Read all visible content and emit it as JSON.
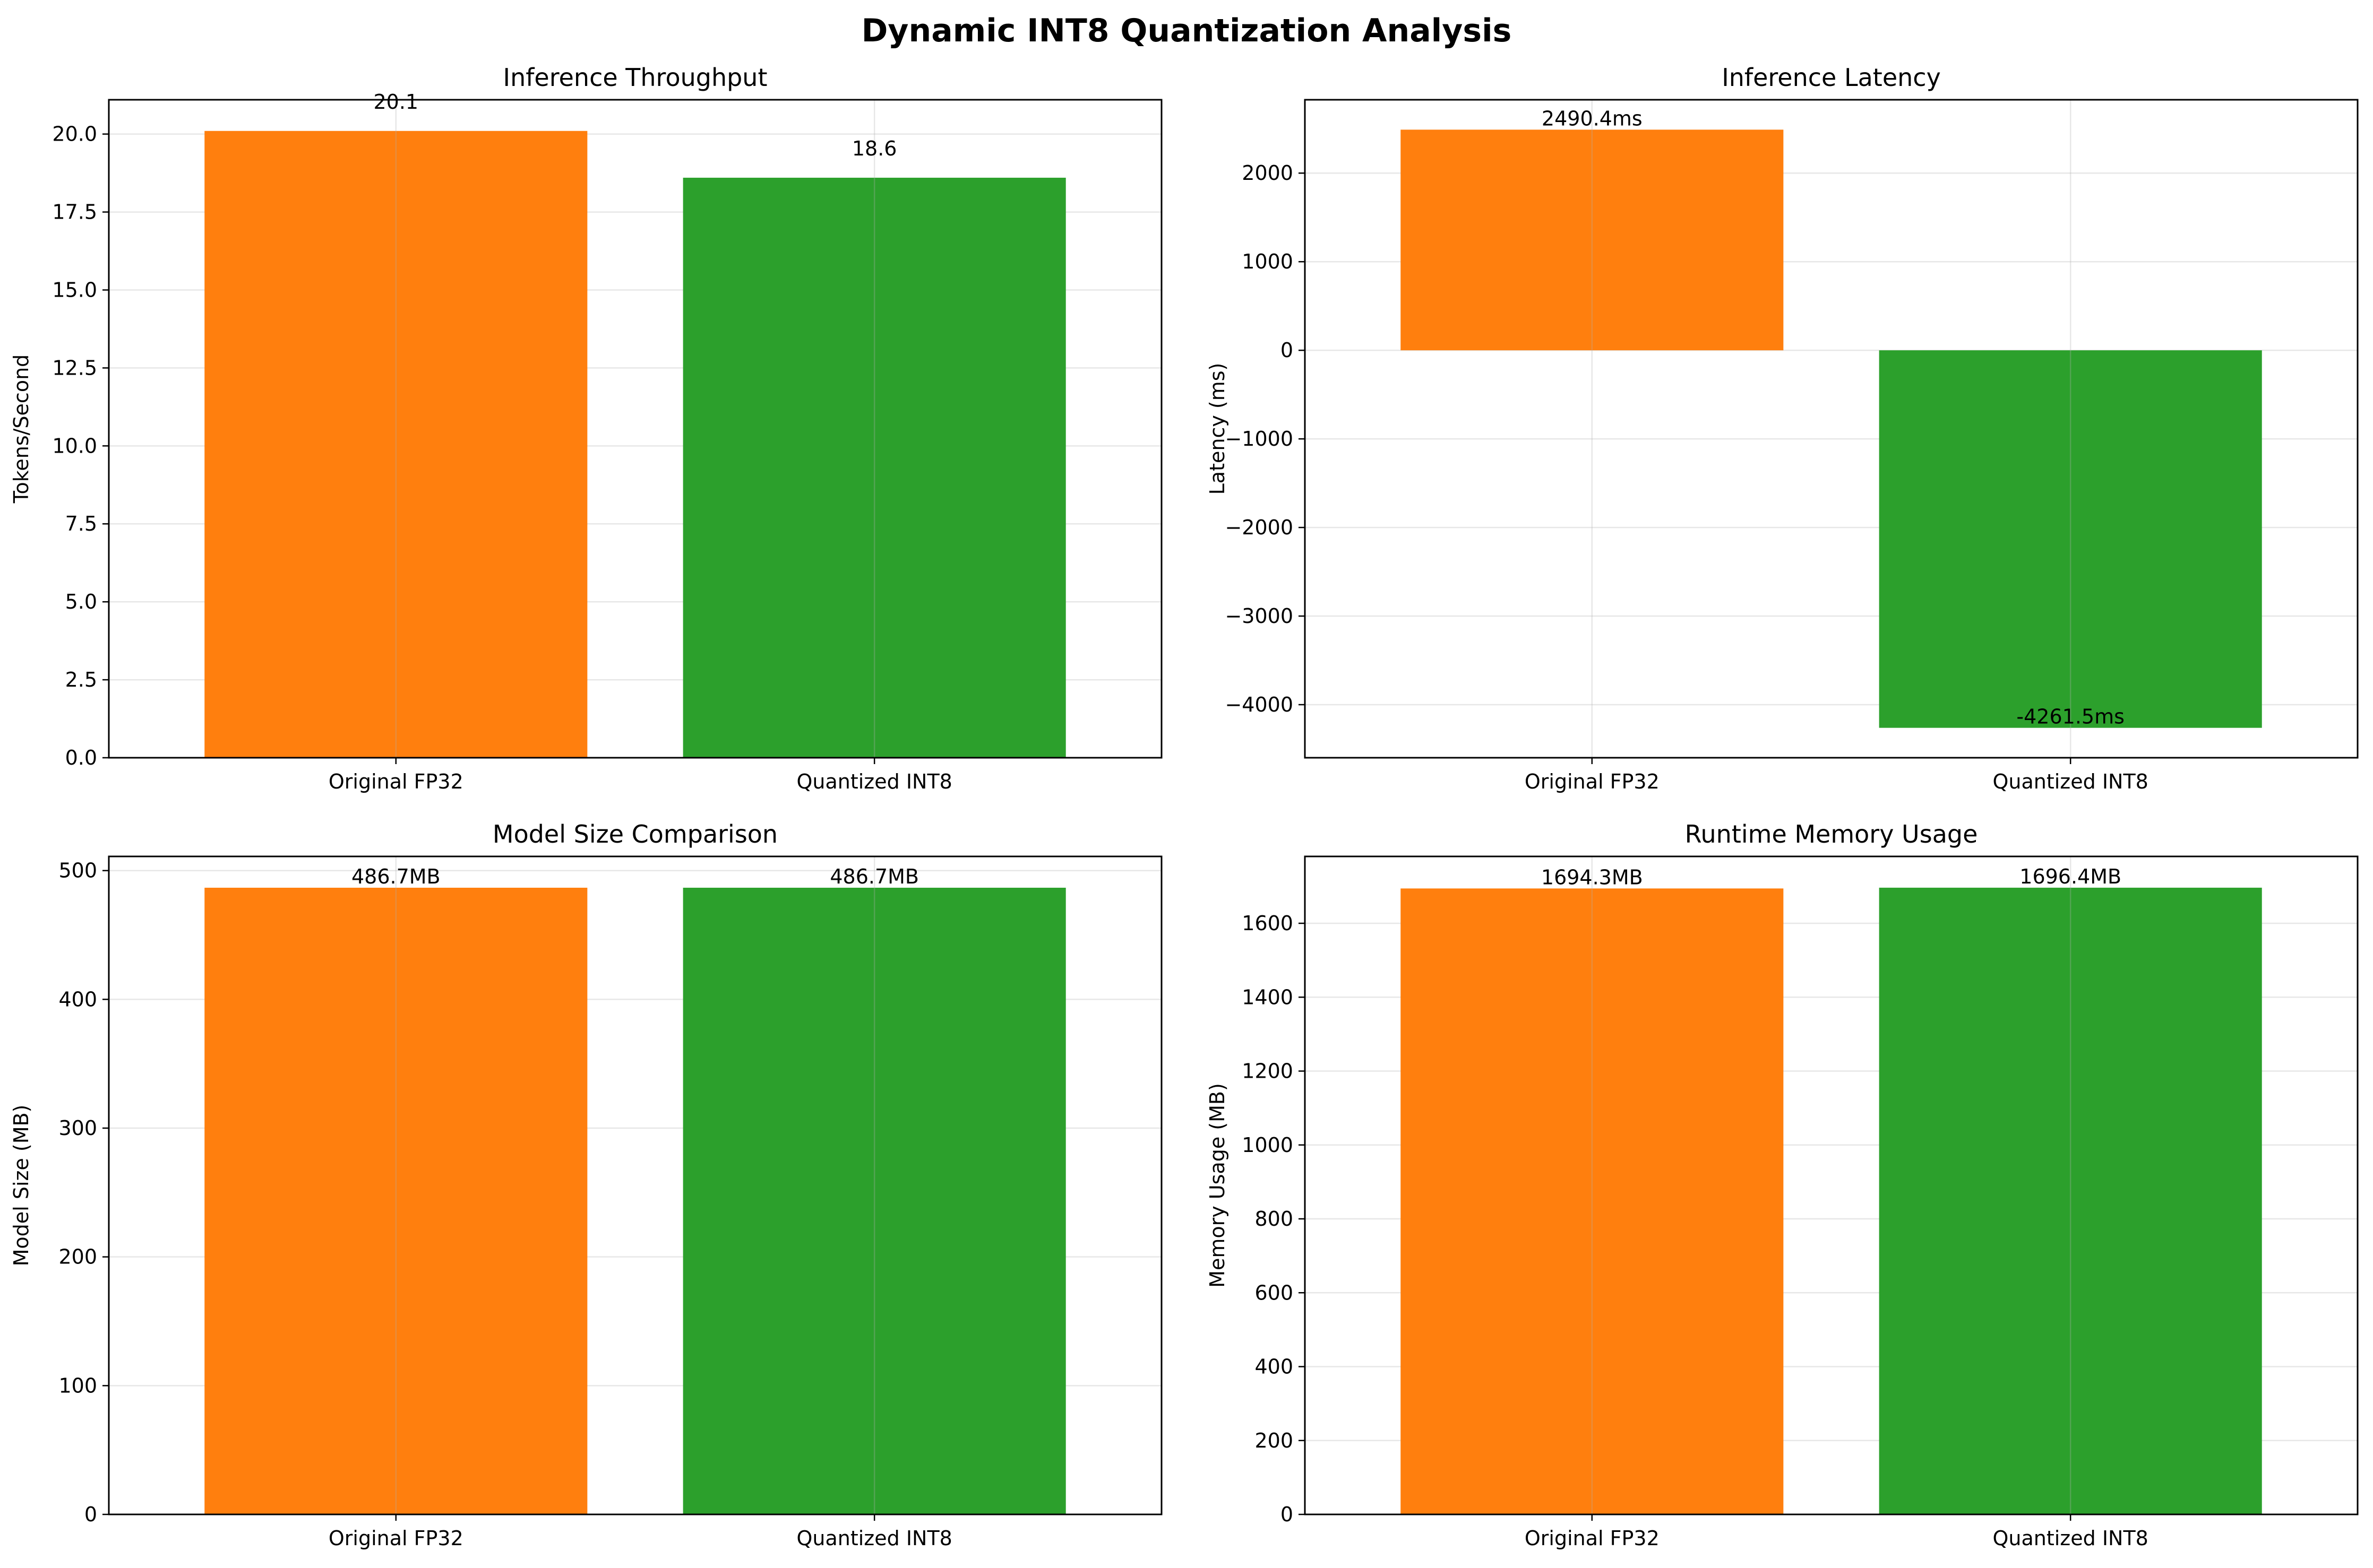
{
  "figure": {
    "title": "Dynamic INT8 Quantization Analysis"
  },
  "chart_data": [
    {
      "type": "bar",
      "title": "Inference Throughput",
      "xlabel": "",
      "ylabel": "Tokens/Second",
      "categories": [
        "Original FP32",
        "Quantized INT8"
      ],
      "values": [
        20.1,
        18.6
      ],
      "value_labels": [
        "20.1",
        "18.6"
      ],
      "label_position": "above",
      "colors": [
        "#ff7f0e",
        "#2ca02c"
      ],
      "ylim": [
        0,
        21.1
      ],
      "yticks": [
        0,
        2.5,
        5,
        7.5,
        10,
        12.5,
        15,
        17.5,
        20
      ],
      "ytick_labels": [
        "0.0",
        "2.5",
        "5.0",
        "7.5",
        "10.0",
        "12.5",
        "15.0",
        "17.5",
        "20.0"
      ],
      "grid": true
    },
    {
      "type": "bar",
      "title": "Inference Latency",
      "xlabel": "",
      "ylabel": "Latency (ms)",
      "categories": [
        "Original FP32",
        "Quantized INT8"
      ],
      "values": [
        2490.4,
        -4261.5
      ],
      "value_labels": [
        "2490.4ms",
        "-4261.5ms"
      ],
      "label_position": "at-end",
      "colors": [
        "#ff7f0e",
        "#2ca02c"
      ],
      "ylim": [
        -4599,
        2828
      ],
      "yticks": [
        -4000,
        -3000,
        -2000,
        -1000,
        0,
        1000,
        2000
      ],
      "ytick_labels": [
        "−4000",
        "−3000",
        "−2000",
        "−1000",
        "0",
        "1000",
        "2000"
      ],
      "grid": true
    },
    {
      "type": "bar",
      "title": "Model Size Comparison",
      "xlabel": "",
      "ylabel": "Model Size (MB)",
      "categories": [
        "Original FP32",
        "Quantized INT8"
      ],
      "values": [
        486.7,
        486.7
      ],
      "value_labels": [
        "486.7MB",
        "486.7MB"
      ],
      "label_position": "at-end",
      "colors": [
        "#ff7f0e",
        "#2ca02c"
      ],
      "ylim": [
        0,
        511
      ],
      "yticks": [
        0,
        100,
        200,
        300,
        400,
        500
      ],
      "ytick_labels": [
        "0",
        "100",
        "200",
        "300",
        "400",
        "500"
      ],
      "grid": true
    },
    {
      "type": "bar",
      "title": "Runtime Memory Usage",
      "xlabel": "",
      "ylabel": "Memory Usage (MB)",
      "categories": [
        "Original FP32",
        "Quantized INT8"
      ],
      "values": [
        1694.3,
        1696.4
      ],
      "value_labels": [
        "1694.3MB",
        "1696.4MB"
      ],
      "label_position": "at-end",
      "colors": [
        "#ff7f0e",
        "#2ca02c"
      ],
      "ylim": [
        0,
        1781
      ],
      "yticks": [
        0,
        200,
        400,
        600,
        800,
        1000,
        1200,
        1400,
        1600
      ],
      "ytick_labels": [
        "0",
        "200",
        "400",
        "600",
        "800",
        "1000",
        "1200",
        "1400",
        "1600"
      ],
      "grid": true
    }
  ]
}
